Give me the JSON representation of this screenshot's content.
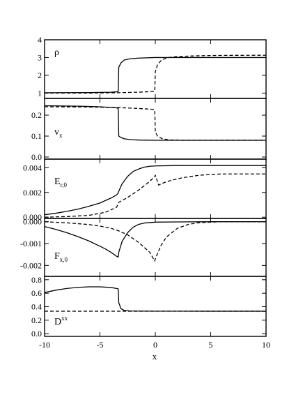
{
  "chart_data": {
    "type": "line",
    "xlabel": "x",
    "xlim": [
      -10,
      10
    ],
    "x_ticks": [
      -10,
      -5,
      0,
      5,
      10
    ],
    "x_tick_labels": [
      "-10",
      "-5",
      "0",
      "5",
      "10"
    ],
    "line_color": "#000000",
    "panels": [
      {
        "id": "rho",
        "label": "ρ",
        "label_sub": "",
        "label_sup": "",
        "ylim": [
          0.7,
          4.0
        ],
        "y_ticks": [
          1,
          2,
          3,
          4
        ],
        "y_tick_labels": [
          "1",
          "2",
          "3",
          "4"
        ],
        "series": [
          {
            "style": "solid",
            "x": [
              -10,
              -6,
              -4,
              -3.5,
              -3.35,
              -3.3,
              -3.1,
              -2.8,
              -2.3,
              -1.5,
              0,
              5,
              10
            ],
            "y": [
              1.02,
              1.03,
              1.05,
              1.07,
              1.09,
              2.45,
              2.7,
              2.86,
              2.93,
              2.97,
              3.0,
              3.0,
              3.0
            ]
          },
          {
            "style": "dashed",
            "x": [
              -10,
              -6,
              -3.3,
              -1.5,
              -0.5,
              -0.05,
              0,
              0.2,
              0.6,
              1.2,
              2,
              4,
              6,
              10
            ],
            "y": [
              1.0,
              1.0,
              1.02,
              1.05,
              1.08,
              1.1,
              2.2,
              2.6,
              2.88,
              3.0,
              3.06,
              3.1,
              3.12,
              3.13
            ]
          }
        ]
      },
      {
        "id": "vx",
        "label": "v",
        "label_sub": "x",
        "label_sup": "",
        "ylim": [
          -0.01,
          0.28
        ],
        "y_ticks": [
          0.0,
          0.1,
          0.2
        ],
        "y_tick_labels": [
          "0.0",
          "0.1",
          "0.2"
        ],
        "series": [
          {
            "style": "solid",
            "x": [
              -10,
              -7,
              -5,
              -3.5,
              -3.35,
              -3.3,
              -3.1,
              -2.8,
              -2.2,
              -1.5,
              0,
              5,
              10
            ],
            "y": [
              0.245,
              0.243,
              0.24,
              0.235,
              0.232,
              0.1,
              0.093,
              0.087,
              0.083,
              0.081,
              0.08,
              0.08,
              0.08
            ]
          },
          {
            "style": "dashed",
            "x": [
              -10,
              -6,
              -3.3,
              -1.5,
              -0.3,
              -0.05,
              0,
              0.2,
              0.6,
              1.2,
              2.5,
              10
            ],
            "y": [
              0.24,
              0.239,
              0.236,
              0.232,
              0.228,
              0.225,
              0.12,
              0.1,
              0.088,
              0.082,
              0.08,
              0.08
            ]
          }
        ]
      },
      {
        "id": "Er0",
        "label": "E",
        "label_sub": "r,0",
        "label_sup": "",
        "ylim": [
          -0.0001,
          0.0047
        ],
        "y_ticks": [
          0.0,
          0.002,
          0.004
        ],
        "y_tick_labels": [
          "0.000",
          "0.002",
          "0.004"
        ],
        "series": [
          {
            "style": "solid",
            "x": [
              -10,
              -9,
              -8,
              -7,
              -6,
              -5,
              -4,
              -3.5,
              -3.35,
              -3.3,
              -3.0,
              -2.5,
              -2.0,
              -1.5,
              -1.0,
              -0.5,
              0,
              2,
              5,
              10
            ],
            "y": [
              0.0002,
              0.00032,
              0.00047,
              0.00065,
              0.00088,
              0.00115,
              0.00155,
              0.0018,
              0.00195,
              0.0021,
              0.0027,
              0.0033,
              0.0037,
              0.0039,
              0.00405,
              0.00412,
              0.00415,
              0.00418,
              0.00418,
              0.00418
            ]
          },
          {
            "style": "dashed",
            "x": [
              -10,
              -8,
              -6,
              -4.5,
              -3.5,
              -3.3,
              -2.5,
              -1.5,
              -0.5,
              -0.05,
              0,
              0.3,
              0.8,
              1.5,
              2.5,
              4,
              6,
              10
            ],
            "y": [
              0.0,
              5e-05,
              0.00015,
              0.0004,
              0.0008,
              0.0012,
              0.0016,
              0.0022,
              0.0029,
              0.0033,
              0.0034,
              0.0026,
              0.0028,
              0.003,
              0.0032,
              0.0034,
              0.0035,
              0.0035
            ]
          }
        ]
      },
      {
        "id": "Fx0",
        "label": "F",
        "label_sub": "x,0",
        "label_sup": "",
        "ylim": [
          -0.0025,
          0.00015
        ],
        "y_ticks": [
          -0.002,
          -0.001,
          0.0
        ],
        "y_tick_labels": [
          "-0.002",
          "-0.001",
          "0.000"
        ],
        "series": [
          {
            "style": "solid",
            "x": [
              -10,
              -9,
              -8,
              -7,
              -6,
              -5,
              -4.5,
              -4,
              -3.5,
              -3.35,
              -3.3,
              -3.0,
              -2.5,
              -2.0,
              -1.5,
              -1.0,
              0,
              2,
              5,
              10
            ],
            "y": [
              -0.00022,
              -0.00035,
              -0.0005,
              -0.00068,
              -0.00088,
              -0.00112,
              -0.00125,
              -0.0014,
              -0.00158,
              -0.00162,
              -0.0014,
              -0.0009,
              -0.0005,
              -0.00025,
              -0.00012,
              -6e-05,
              -2e-05,
              -1e-05,
              0.0,
              0.0
            ]
          },
          {
            "style": "dashed",
            "x": [
              -10,
              -8,
              -6,
              -5,
              -4,
              -3.3,
              -2.5,
              -1.5,
              -0.5,
              -0.05,
              0,
              0.5,
              1.0,
              2.0,
              3.0,
              4.0,
              6,
              10
            ],
            "y": [
              0.0,
              -5e-05,
              -0.00013,
              -0.0002,
              -0.0003,
              -0.00042,
              -0.0006,
              -0.00095,
              -0.0014,
              -0.0018,
              -0.0017,
              -0.0011,
              -0.0007,
              -0.0003,
              -0.00012,
              -4e-05,
              0.0,
              0.0
            ]
          }
        ]
      },
      {
        "id": "Dxx",
        "label": "D",
        "label_sub": "",
        "label_sup": "xx",
        "ylim": [
          -0.04,
          0.85
        ],
        "y_ticks": [
          0.0,
          0.2,
          0.4,
          0.6,
          0.8
        ],
        "y_tick_labels": [
          "0.0",
          "0.2",
          "0.4",
          "0.6",
          "0.8"
        ],
        "series": [
          {
            "style": "solid",
            "x": [
              -10,
              -9,
              -8,
              -7,
              -6,
              -5,
              -4,
              -3.5,
              -3.35,
              -3.3,
              -3.1,
              -2.8,
              -2.3,
              -1.5,
              0,
              5,
              10
            ],
            "y": [
              0.61,
              0.645,
              0.67,
              0.687,
              0.695,
              0.695,
              0.685,
              0.67,
              0.665,
              0.46,
              0.37,
              0.345,
              0.338,
              0.335,
              0.334,
              0.333,
              0.333
            ]
          },
          {
            "style": "dashed",
            "x": [
              -10,
              10
            ],
            "y": [
              0.333,
              0.333
            ]
          }
        ]
      }
    ]
  }
}
